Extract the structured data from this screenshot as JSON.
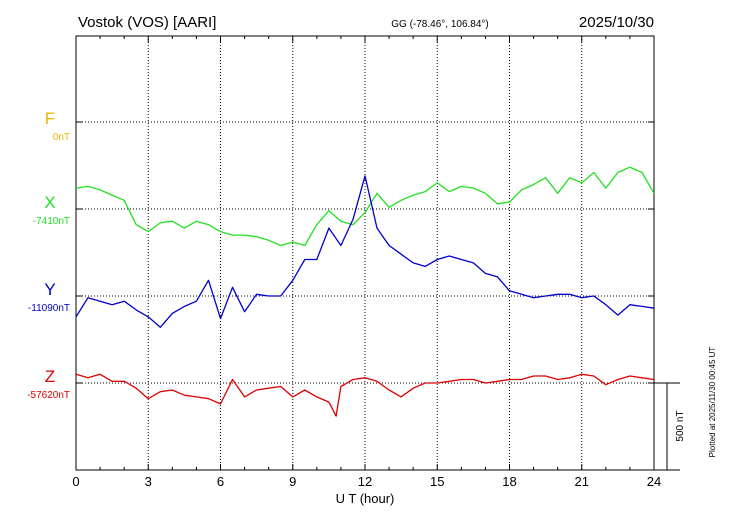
{
  "header": {
    "station": "Vostok (VOS)  [AARI]",
    "coords": "GG (-78.46°, 106.84°)",
    "date": "2025/10/30"
  },
  "side_note": "Plotted at 2025/11/30 00:45 UT",
  "scale_label": "500 nT",
  "chart_data": {
    "type": "line",
    "xlabel": "U T (hour)",
    "xlim": [
      0,
      24
    ],
    "xticks": [
      "0",
      "3",
      "6",
      "9",
      "12",
      "15",
      "18",
      "21",
      "24"
    ],
    "scale_nT": 500,
    "series": [
      {
        "name": "F",
        "baseline_label": "0nT",
        "baseline": 0,
        "color": "#f0b400",
        "x": [],
        "y": []
      },
      {
        "name": "X",
        "baseline_label": "-7410nT",
        "baseline": -7410,
        "color": "#22e022",
        "x": [
          0,
          0.5,
          1,
          1.5,
          2,
          2.5,
          3,
          3.5,
          4,
          4.5,
          5,
          5.5,
          6,
          6.5,
          7,
          7.5,
          8,
          8.5,
          9,
          9.5,
          10,
          10.5,
          11,
          11.5,
          12,
          12.5,
          13,
          13.5,
          14,
          14.5,
          15,
          15.5,
          16,
          16.5,
          17,
          17.5,
          18,
          18.5,
          19,
          19.5,
          20,
          20.5,
          21,
          21.5,
          22,
          22.5,
          23,
          23.5,
          24
        ],
        "y": [
          -7290,
          -7280,
          -7300,
          -7330,
          -7360,
          -7500,
          -7540,
          -7490,
          -7480,
          -7520,
          -7480,
          -7500,
          -7540,
          -7560,
          -7560,
          -7570,
          -7590,
          -7620,
          -7600,
          -7620,
          -7500,
          -7420,
          -7480,
          -7500,
          -7430,
          -7320,
          -7400,
          -7360,
          -7330,
          -7310,
          -7260,
          -7310,
          -7280,
          -7290,
          -7320,
          -7380,
          -7370,
          -7300,
          -7270,
          -7230,
          -7320,
          -7230,
          -7260,
          -7200,
          -7290,
          -7200,
          -7170,
          -7200,
          -7320
        ]
      },
      {
        "name": "Y",
        "baseline_label": "-11090nT",
        "baseline": -11090,
        "color": "#0000cc",
        "x": [
          0,
          0.5,
          1,
          1.5,
          2,
          2.5,
          3,
          3.5,
          4,
          4.5,
          5,
          5.5,
          6,
          6.5,
          7,
          7.5,
          8,
          8.5,
          9,
          9.5,
          10,
          10.5,
          11,
          11.5,
          12,
          12.5,
          13,
          13.5,
          14,
          14.5,
          15,
          15.5,
          16,
          16.5,
          17,
          17.5,
          18,
          18.5,
          19,
          19.5,
          20,
          20.5,
          21,
          21.5,
          22,
          22.5,
          23,
          23.5,
          24
        ],
        "y": [
          -11210,
          -11100,
          -11120,
          -11140,
          -11120,
          -11170,
          -11210,
          -11270,
          -11190,
          -11150,
          -11120,
          -11000,
          -11220,
          -11040,
          -11180,
          -11080,
          -11090,
          -11090,
          -11000,
          -10880,
          -10880,
          -10700,
          -10800,
          -10650,
          -10400,
          -10700,
          -10800,
          -10850,
          -10900,
          -10920,
          -10880,
          -10860,
          -10880,
          -10900,
          -10960,
          -10980,
          -11060,
          -11080,
          -11100,
          -11090,
          -11080,
          -11080,
          -11100,
          -11090,
          -11140,
          -11200,
          -11140,
          -11150,
          -11160
        ]
      },
      {
        "name": "Z",
        "baseline_label": "-57620nT",
        "baseline": -57620,
        "color": "#dd0000",
        "x": [
          0,
          0.5,
          1,
          1.5,
          2,
          2.5,
          3,
          3.5,
          4,
          4.5,
          5,
          5.5,
          6,
          6.5,
          7,
          7.5,
          8,
          8.5,
          9,
          9.5,
          10,
          10.5,
          10.8,
          11,
          11.5,
          12,
          12.5,
          13,
          13.5,
          14,
          14.5,
          15,
          15.5,
          16,
          16.5,
          17,
          17.5,
          18,
          18.5,
          19,
          19.5,
          20,
          20.5,
          21,
          21.5,
          22,
          22.5,
          23,
          23.5,
          24
        ],
        "y": [
          -57570,
          -57590,
          -57570,
          -57610,
          -57610,
          -57650,
          -57710,
          -57670,
          -57660,
          -57690,
          -57700,
          -57710,
          -57740,
          -57600,
          -57700,
          -57660,
          -57650,
          -57640,
          -57700,
          -57660,
          -57700,
          -57730,
          -57810,
          -57640,
          -57600,
          -57590,
          -57610,
          -57660,
          -57700,
          -57650,
          -57620,
          -57620,
          -57610,
          -57600,
          -57600,
          -57620,
          -57610,
          -57600,
          -57600,
          -57580,
          -57580,
          -57600,
          -57590,
          -57570,
          -57580,
          -57630,
          -57600,
          -57580,
          -57590,
          -57600
        ]
      }
    ]
  }
}
